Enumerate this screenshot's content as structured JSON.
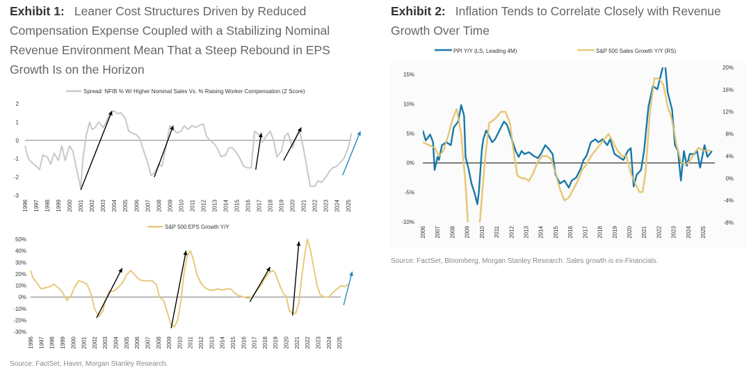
{
  "exhibit1": {
    "label": "Exhibit 1:",
    "title": "Leaner Cost Structures Driven by Reduced Compensation Expense Coupled with a Stabilizing Nominal Revenue Environment Mean That a Steep Rebound in EPS Growth Is on the Horizon",
    "source": "Source: FactSet, Haver, Morgan Stanley Research."
  },
  "exhibit2": {
    "label": "Exhibit 2:",
    "title": "Inflation Tends to Correlate Closely with Revenue Growth Over Time",
    "source": "Source: FactSet, Bloomberg, Morgan Stanley Research. Sales growth is ex-Financials."
  },
  "colors": {
    "gray_series": "#c8c8c8",
    "gold_series": "#e8c97a",
    "blue_series": "#1878a8",
    "arrow_black": "#000000",
    "arrow_blue": "#1f86bf",
    "zero_line_gray": "#aaaaaa"
  },
  "chart_data": [
    {
      "id": "nfib_spread",
      "type": "line",
      "title": "",
      "legend": [
        "Spread: NFIB % W/ Higher Nominal Sales Vs. % Raising Worker Compensation (Z Score)"
      ],
      "legend_position": "top-center",
      "xlabel": "",
      "ylabel": "",
      "ylim": [
        -3,
        2
      ],
      "yticks": [
        "2",
        "1",
        "0",
        "-1",
        "-2",
        "-3"
      ],
      "xticks": [
        "1996",
        "1997",
        "1998",
        "1999",
        "2000",
        "2001",
        "2002",
        "2003",
        "2004",
        "2005",
        "2006",
        "2007",
        "2008",
        "2009",
        "2010",
        "2011",
        "2012",
        "2013",
        "2014",
        "2015",
        "2016",
        "2017",
        "2018",
        "2019",
        "2020",
        "2021",
        "2022",
        "2023",
        "2024",
        "2025"
      ],
      "xlim": [
        1996,
        2026.2
      ],
      "grid": false,
      "series": [
        {
          "name": "Spread: NFIB % W/ Higher Nominal Sales Vs. % Raising Worker Compensation (Z Score)",
          "x": [
            1996.0,
            1996.3,
            1996.6,
            1997.0,
            1997.3,
            1997.6,
            1998.0,
            1998.3,
            1998.6,
            1999.0,
            1999.3,
            1999.6,
            2000.0,
            2000.3,
            2000.6,
            2001.0,
            2001.2,
            2001.5,
            2001.8,
            2002.0,
            2002.3,
            2002.6,
            2003.0,
            2003.3,
            2003.6,
            2004.0,
            2004.3,
            2004.6,
            2005.0,
            2005.3,
            2005.6,
            2006.0,
            2006.3,
            2006.6,
            2007.0,
            2007.3,
            2007.6,
            2008.0,
            2008.3,
            2008.6,
            2009.0,
            2009.3,
            2009.6,
            2010.0,
            2010.3,
            2010.6,
            2011.0,
            2011.3,
            2011.6,
            2012.0,
            2012.3,
            2012.6,
            2013.0,
            2013.3,
            2013.6,
            2014.0,
            2014.3,
            2014.6,
            2015.0,
            2015.3,
            2015.6,
            2016.0,
            2016.3,
            2016.6,
            2017.0,
            2017.3,
            2017.6,
            2018.0,
            2018.3,
            2018.6,
            2019.0,
            2019.3,
            2019.6,
            2020.0,
            2020.3,
            2020.6,
            2021.0,
            2021.3,
            2021.6,
            2022.0,
            2022.3,
            2022.6,
            2023.0,
            2023.3,
            2023.6,
            2024.0,
            2024.3,
            2024.6,
            2025.0,
            2025.3
          ],
          "y": [
            -0.3,
            -1.0,
            -1.2,
            -1.4,
            -1.6,
            -0.8,
            -0.9,
            -1.3,
            -0.7,
            -1.1,
            -0.3,
            -1.1,
            -0.3,
            -0.6,
            -1.5,
            -2.6,
            -1.0,
            0.3,
            1.0,
            0.6,
            0.7,
            1.0,
            0.7,
            1.0,
            1.5,
            1.6,
            1.45,
            1.5,
            1.2,
            0.5,
            0.4,
            0.3,
            0.1,
            -0.5,
            -1.2,
            -1.9,
            -1.8,
            -1.3,
            -1.4,
            -0.5,
            0.8,
            0.6,
            0.4,
            0.5,
            0.8,
            0.6,
            0.8,
            0.7,
            0.8,
            0.9,
            0.2,
            0.0,
            -0.2,
            -0.5,
            -0.9,
            -0.8,
            -0.4,
            -0.4,
            -0.7,
            -1.0,
            -1.4,
            -1.5,
            -1.5,
            0.5,
            0.3,
            -0.1,
            0.2,
            0.5,
            0.0,
            -0.9,
            -0.6,
            0.2,
            0.4,
            -0.4,
            0.1,
            0.6,
            -0.5,
            -1.5,
            -2.5,
            -2.5,
            -2.2,
            -2.3,
            -2.0,
            -1.7,
            -1.5,
            -1.4,
            -1.2,
            -1.0,
            -0.4,
            0.4
          ]
        }
      ],
      "annotations": [
        {
          "type": "arrow",
          "color": "black",
          "from": [
            2001.0,
            -2.7
          ],
          "to": [
            2003.8,
            1.6
          ]
        },
        {
          "type": "arrow",
          "color": "black",
          "from": [
            2007.6,
            -2.0
          ],
          "to": [
            2009.3,
            0.8
          ]
        },
        {
          "type": "arrow",
          "color": "black",
          "from": [
            2016.7,
            -1.6
          ],
          "to": [
            2017.2,
            0.4
          ]
        },
        {
          "type": "arrow",
          "color": "black",
          "from": [
            2019.2,
            -1.1
          ],
          "to": [
            2020.8,
            0.7
          ]
        },
        {
          "type": "arrow",
          "color": "blue",
          "from": [
            2024.5,
            -1.9
          ],
          "to": [
            2026.1,
            0.5
          ]
        }
      ]
    },
    {
      "id": "eps_growth",
      "type": "line",
      "title": "",
      "legend": [
        "S&P 500 EPS Growth Y/Y"
      ],
      "legend_position": "top-center",
      "xlabel": "",
      "ylabel": "",
      "ylim": [
        -30,
        50
      ],
      "yticks": [
        "50%",
        "40%",
        "30%",
        "20%",
        "10%",
        "0%",
        "-10%",
        "-20%",
        "-30%"
      ],
      "xticks": [
        "1996",
        "1997",
        "1998",
        "1999",
        "2000",
        "2001",
        "2002",
        "2003",
        "2004",
        "2005",
        "2006",
        "2007",
        "2008",
        "2009",
        "2010",
        "2011",
        "2012",
        "2013",
        "2014",
        "2015",
        "2016",
        "2017",
        "2018",
        "2019",
        "2020",
        "2021",
        "2022",
        "2023",
        "2024",
        "2025"
      ],
      "xlim": [
        1996,
        2026.3
      ],
      "grid": false,
      "series": [
        {
          "name": "S&P 500 EPS Growth Y/Y",
          "x": [
            1996.0,
            1996.2,
            1996.6,
            1997.0,
            1997.4,
            1997.8,
            1998.2,
            1998.6,
            1999.0,
            1999.4,
            1999.8,
            2000.1,
            2000.5,
            2000.9,
            2001.3,
            2001.7,
            2002.0,
            2002.4,
            2002.8,
            2003.0,
            2003.4,
            2003.8,
            2004.2,
            2004.6,
            2005.0,
            2005.4,
            2005.8,
            2006.2,
            2006.6,
            2007.0,
            2007.4,
            2007.8,
            2008.1,
            2008.5,
            2008.9,
            2009.2,
            2009.5,
            2009.8,
            2010.1,
            2010.4,
            2010.7,
            2011.0,
            2011.3,
            2011.6,
            2012.0,
            2012.4,
            2012.8,
            2013.2,
            2013.6,
            2014.0,
            2014.4,
            2014.8,
            2015.2,
            2015.6,
            2016.0,
            2016.4,
            2016.8,
            2017.2,
            2017.6,
            2018.0,
            2018.4,
            2018.8,
            2019.0,
            2019.4,
            2019.8,
            2020.0,
            2020.3,
            2020.6,
            2020.9,
            2021.2,
            2021.5,
            2021.8,
            2022.0,
            2022.3,
            2022.6,
            2022.9,
            2023.2,
            2023.6,
            2024.0,
            2024.4,
            2024.8,
            2025.2,
            2025.5,
            2025.8
          ],
          "y": [
            23,
            17,
            12,
            7,
            8,
            9,
            11,
            8,
            4,
            -3,
            1,
            8,
            14,
            13,
            11,
            2,
            -10,
            -17,
            -12,
            -3,
            5,
            5,
            8,
            12,
            19,
            23,
            19,
            15,
            14,
            14,
            14,
            11,
            0,
            -3,
            -15,
            -24,
            -26,
            -20,
            -5,
            20,
            35,
            40,
            32,
            20,
            12,
            8,
            6,
            6,
            7,
            6,
            7,
            7,
            3,
            1,
            0,
            -1,
            0,
            5,
            10,
            16,
            21,
            23,
            20,
            10,
            2,
            1,
            -12,
            -14,
            -14,
            -5,
            20,
            40,
            50,
            40,
            25,
            10,
            2,
            0,
            0,
            4,
            7,
            10,
            9,
            11
          ]
        }
      ],
      "annotations": [
        {
          "type": "arrow",
          "color": "black",
          "from": [
            2002.2,
            -18
          ],
          "to": [
            2004.6,
            25
          ]
        },
        {
          "type": "arrow",
          "color": "black",
          "from": [
            2009.2,
            -27
          ],
          "to": [
            2010.6,
            40
          ]
        },
        {
          "type": "arrow",
          "color": "black",
          "from": [
            2016.6,
            -4
          ],
          "to": [
            2018.5,
            26
          ]
        },
        {
          "type": "arrow",
          "color": "black",
          "from": [
            2020.6,
            -16
          ],
          "to": [
            2021.2,
            48
          ]
        },
        {
          "type": "arrow",
          "color": "blue",
          "from": [
            2025.4,
            -7
          ],
          "to": [
            2026.2,
            22
          ]
        }
      ]
    },
    {
      "id": "ppi_vs_sales",
      "type": "line",
      "title": "",
      "legend": [
        "PPI Y/Y (LS, Leading 4M)",
        "S&P 500 Sales Growth Y/Y (RS)"
      ],
      "legend_position": "top",
      "xlabel": "",
      "ylabel_left": "",
      "ylabel_right": "",
      "ylim_left": [
        -10,
        15
      ],
      "ylim_right": [
        -8,
        20
      ],
      "yticks_left": [
        "15%",
        "10%",
        "5%",
        "0%",
        "-5%",
        "-10%"
      ],
      "yticks_right": [
        "20%",
        "16%",
        "12%",
        "8%",
        "4%",
        "0%",
        "-4%",
        "-8%"
      ],
      "xticks": [
        "2006",
        "2007",
        "2008",
        "2009",
        "2010",
        "2011",
        "2012",
        "2013",
        "2014",
        "2015",
        "2016",
        "2017",
        "2018",
        "2019",
        "2020",
        "2021",
        "2022",
        "2023",
        "2024",
        "2025"
      ],
      "xlim": [
        2006,
        2025.8
      ],
      "grid": false,
      "series": [
        {
          "name": "PPI Y/Y (LS, Leading 4M)",
          "axis": "left",
          "x": [
            2006.0,
            2006.2,
            2006.5,
            2006.7,
            2006.8,
            2007.0,
            2007.1,
            2007.3,
            2007.6,
            2007.9,
            2008.1,
            2008.4,
            2008.6,
            2008.8,
            2008.9,
            2009.1,
            2009.3,
            2009.5,
            2009.7,
            2009.8,
            2010.0,
            2010.1,
            2010.3,
            2010.5,
            2010.7,
            2010.9,
            2011.2,
            2011.5,
            2011.7,
            2011.9,
            2012.1,
            2012.3,
            2012.5,
            2012.7,
            2012.9,
            2013.2,
            2013.5,
            2013.8,
            2014.0,
            2014.3,
            2014.5,
            2014.8,
            2015.0,
            2015.3,
            2015.6,
            2015.9,
            2016.1,
            2016.4,
            2016.7,
            2016.9,
            2017.1,
            2017.4,
            2017.7,
            2017.9,
            2018.2,
            2018.5,
            2018.7,
            2019.0,
            2019.3,
            2019.6,
            2019.9,
            2020.1,
            2020.3,
            2020.5,
            2020.8,
            2021.0,
            2021.3,
            2021.6,
            2021.9,
            2022.2,
            2022.4,
            2022.6,
            2022.9,
            2023.1,
            2023.3,
            2023.5,
            2023.7,
            2023.9,
            2024.1,
            2024.4,
            2024.6,
            2024.8,
            2025.1,
            2025.3,
            2025.6
          ],
          "y": [
            5.5,
            3.8,
            4.8,
            3.5,
            -1.2,
            1.0,
            0.5,
            3.0,
            3.5,
            3.0,
            6.0,
            7.0,
            9.8,
            8.0,
            1.0,
            -1.0,
            -3.5,
            -5.0,
            -7.0,
            -5.0,
            2.0,
            4.0,
            5.5,
            4.5,
            3.5,
            4.0,
            5.5,
            7.0,
            6.5,
            5.0,
            3.5,
            2.0,
            1.0,
            2.0,
            1.5,
            1.8,
            1.2,
            0.8,
            1.5,
            3.0,
            2.5,
            1.5,
            -2.0,
            -3.5,
            -3.0,
            -4.2,
            -3.0,
            -2.5,
            -1.0,
            0.5,
            1.2,
            3.5,
            4.0,
            3.5,
            4.0,
            3.0,
            4.0,
            1.5,
            1.0,
            0.5,
            2.0,
            2.5,
            -4.0,
            -2.0,
            -1.2,
            2.0,
            9.5,
            13.0,
            12.5,
            15.5,
            17.5,
            12.0,
            9.0,
            3.0,
            2.0,
            -3.0,
            2.0,
            -0.5,
            1.5,
            1.5,
            2.0,
            -0.8,
            3.0,
            1.0,
            2.0
          ]
        },
        {
          "name": "S&P 500 Sales Growth Y/Y (RS)",
          "axis": "right",
          "x": [
            2006.0,
            2006.4,
            2006.8,
            2007.1,
            2007.4,
            2007.7,
            2008.0,
            2008.3,
            2008.6,
            2008.9,
            2009.1,
            2009.4,
            2009.7,
            2009.9,
            2010.2,
            2010.5,
            2010.8,
            2011.0,
            2011.3,
            2011.6,
            2011.9,
            2012.1,
            2012.4,
            2012.7,
            2012.9,
            2013.2,
            2013.5,
            2013.8,
            2014.1,
            2014.4,
            2014.7,
            2015.0,
            2015.3,
            2015.6,
            2015.9,
            2016.2,
            2016.5,
            2016.8,
            2017.1,
            2017.4,
            2017.7,
            2018.0,
            2018.3,
            2018.6,
            2018.9,
            2019.2,
            2019.5,
            2019.8,
            2020.1,
            2020.4,
            2020.7,
            2020.9,
            2021.1,
            2021.4,
            2021.7,
            2022.0,
            2022.3,
            2022.6,
            2022.9,
            2023.2,
            2023.5,
            2023.8,
            2024.1,
            2024.4,
            2024.7,
            2025.0,
            2025.3,
            2025.5
          ],
          "y": [
            6.5,
            6.0,
            5.5,
            4.0,
            5.0,
            7.5,
            10.5,
            12.5,
            8.0,
            -1.0,
            -10.0,
            -12.0,
            -12.0,
            -7.0,
            3.0,
            10.0,
            10.5,
            11.0,
            12.0,
            12.0,
            10.0,
            6.0,
            0.5,
            0.0,
            0.0,
            -0.5,
            1.0,
            3.0,
            4.0,
            4.0,
            3.5,
            1.0,
            -2.0,
            -4.0,
            -3.5,
            -2.0,
            -0.5,
            1.5,
            2.5,
            4.0,
            5.0,
            6.0,
            7.0,
            8.0,
            6.5,
            5.0,
            4.0,
            4.0,
            1.0,
            -1.0,
            -2.5,
            -2.5,
            1.0,
            12.0,
            18.0,
            18.0,
            17.0,
            13.0,
            10.5,
            6.0,
            3.0,
            2.5,
            3.0,
            4.5,
            5.5,
            5.0,
            5.0,
            5.0
          ]
        }
      ]
    }
  ]
}
